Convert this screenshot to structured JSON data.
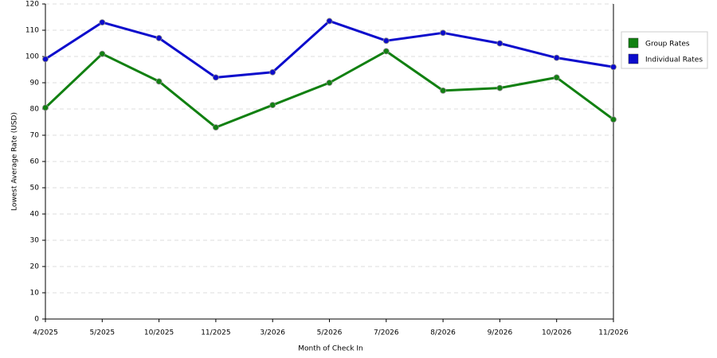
{
  "chart_data": {
    "type": "line",
    "x_label": "Month of Check In",
    "y_label": "Lowest Average Rate (USD)",
    "categories": [
      "4/2025",
      "5/2025",
      "10/2025",
      "11/2025",
      "3/2026",
      "5/2026",
      "7/2026",
      "8/2026",
      "9/2026",
      "10/2026",
      "11/2026"
    ],
    "series": [
      {
        "name": "Group Rates",
        "color": "#118011",
        "values": [
          80.5,
          101,
          90.5,
          73,
          81.5,
          90,
          102,
          87,
          88,
          92,
          76
        ]
      },
      {
        "name": "Individual Rates",
        "color": "#0c0ccc",
        "values": [
          99,
          113,
          107,
          92,
          94,
          113.5,
          106,
          109,
          105,
          99.5,
          96
        ]
      }
    ],
    "ylim": [
      0,
      120
    ],
    "yticks": [
      0,
      10,
      20,
      30,
      40,
      50,
      60,
      70,
      80,
      90,
      100,
      110,
      120
    ],
    "grid": true,
    "legend": "right"
  }
}
